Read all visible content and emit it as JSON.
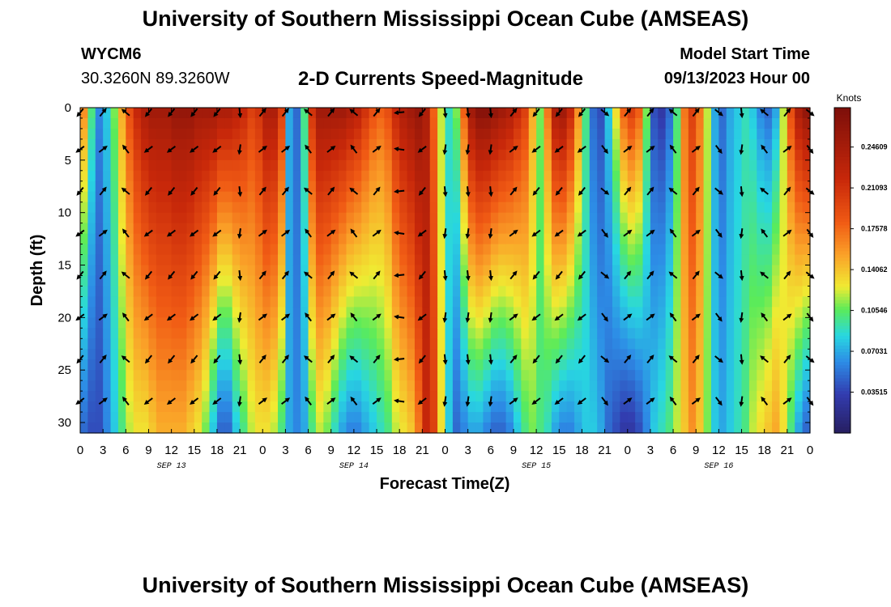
{
  "header": {
    "title": "University of Southern Mississippi Ocean Cube (AMSEAS)",
    "station": "WYCM6",
    "coords": "30.3260N  89.3260W",
    "subtitle": "2-D Currents Speed-Magnitude",
    "model_start_label": "Model Start Time",
    "model_start_value": "09/13/2023 Hour 00"
  },
  "footer": {
    "title": "University of Southern Mississippi Ocean Cube (AMSEAS)"
  },
  "chart_data": {
    "type": "heatmap",
    "xlabel": "Forecast Time(Z)",
    "ylabel": "Depth (ft)",
    "x_range_hours": [
      0,
      96
    ],
    "y_range_ft": [
      0,
      31
    ],
    "x_tick_labels": [
      "0",
      "3",
      "6",
      "9",
      "12",
      "15",
      "18",
      "21",
      "0",
      "3",
      "6",
      "9",
      "12",
      "15",
      "18",
      "21",
      "0",
      "3",
      "6",
      "9",
      "12",
      "15",
      "18",
      "21",
      "0",
      "3",
      "6",
      "9",
      "12",
      "15",
      "18",
      "21",
      "0"
    ],
    "y_ticks": [
      0,
      5,
      10,
      15,
      20,
      25,
      30
    ],
    "y_tick_labels": [
      "0",
      "5",
      "10",
      "15",
      "20",
      "25",
      "30"
    ],
    "day_labels": [
      "SEP 13",
      "SEP 14",
      "SEP 15",
      "SEP 16"
    ],
    "colorbar": {
      "title": "Knots",
      "range": [
        0,
        0.28
      ],
      "tick_values": [
        0.03515,
        0.07031,
        0.10546,
        0.14062,
        0.17578,
        0.21093,
        0.24609
      ],
      "tick_labels": [
        "0.03515",
        "0.07031",
        "0.10546",
        "0.14062",
        "0.17578",
        "0.21093",
        "0.24609"
      ]
    },
    "speed_profile": {
      "time_hours": [
        0,
        1,
        2,
        3,
        4,
        5,
        6,
        7,
        8,
        9,
        10,
        11,
        12,
        13,
        14,
        15,
        16,
        17,
        18,
        19,
        20,
        21,
        22,
        23,
        24,
        25,
        26,
        27,
        28,
        29,
        30,
        31,
        32,
        33,
        34,
        35,
        36,
        37,
        38,
        39,
        40,
        41,
        42,
        43,
        44,
        45,
        46,
        47,
        48,
        49,
        50,
        51,
        52,
        53,
        54,
        55,
        56,
        57,
        58,
        59,
        60,
        61,
        62,
        63,
        64,
        65,
        66,
        67,
        68,
        69,
        70,
        71,
        72,
        73,
        74,
        75,
        76,
        77,
        78,
        79,
        80,
        81,
        82,
        83,
        84,
        85,
        86,
        87,
        88,
        89,
        90,
        91,
        92,
        93,
        94,
        95,
        96
      ],
      "surface_knots": [
        0.16,
        0.1,
        0.06,
        0.08,
        0.11,
        0.15,
        0.19,
        0.22,
        0.24,
        0.25,
        0.25,
        0.25,
        0.26,
        0.26,
        0.26,
        0.25,
        0.25,
        0.25,
        0.24,
        0.24,
        0.23,
        0.22,
        0.2,
        0.21,
        0.24,
        0.24,
        0.2,
        0.07,
        0.05,
        0.1,
        0.21,
        0.25,
        0.25,
        0.25,
        0.25,
        0.24,
        0.23,
        0.21,
        0.19,
        0.18,
        0.19,
        0.22,
        0.24,
        0.25,
        0.26,
        0.24,
        0.18,
        0.12,
        0.09,
        0.11,
        0.18,
        0.25,
        0.27,
        0.27,
        0.26,
        0.25,
        0.24,
        0.22,
        0.2,
        0.15,
        0.11,
        0.17,
        0.24,
        0.25,
        0.22,
        0.16,
        0.1,
        0.05,
        0.04,
        0.08,
        0.13,
        0.18,
        0.2,
        0.18,
        0.11,
        0.04,
        0.03,
        0.05,
        0.1,
        0.17,
        0.2,
        0.17,
        0.12,
        0.07,
        0.05,
        0.07,
        0.08,
        0.09,
        0.08,
        0.06,
        0.05,
        0.07,
        0.12,
        0.19,
        0.24,
        0.26,
        0.26
      ],
      "deep_knots": [
        0.05,
        0.04,
        0.04,
        0.06,
        0.08,
        0.1,
        0.12,
        0.13,
        0.13,
        0.14,
        0.15,
        0.15,
        0.15,
        0.15,
        0.14,
        0.13,
        0.11,
        0.08,
        0.05,
        0.05,
        0.08,
        0.1,
        0.12,
        0.13,
        0.13,
        0.12,
        0.1,
        0.07,
        0.06,
        0.07,
        0.1,
        0.12,
        0.11,
        0.09,
        0.07,
        0.06,
        0.06,
        0.07,
        0.08,
        0.09,
        0.1,
        0.12,
        0.13,
        0.14,
        0.17,
        0.22,
        0.2,
        0.13,
        0.08,
        0.05,
        0.06,
        0.07,
        0.07,
        0.06,
        0.05,
        0.05,
        0.06,
        0.08,
        0.1,
        0.11,
        0.1,
        0.09,
        0.07,
        0.06,
        0.06,
        0.07,
        0.08,
        0.08,
        0.07,
        0.05,
        0.04,
        0.03,
        0.03,
        0.04,
        0.06,
        0.08,
        0.09,
        0.1,
        0.12,
        0.14,
        0.16,
        0.14,
        0.11,
        0.08,
        0.07,
        0.08,
        0.09,
        0.1,
        0.12,
        0.13,
        0.14,
        0.15,
        0.13,
        0.1,
        0.07,
        0.05,
        0.04
      ]
    },
    "vector_times_hours": [
      0,
      3,
      6,
      9,
      12,
      15,
      18,
      21,
      24,
      27,
      30,
      33,
      36,
      39,
      42,
      45,
      48,
      51,
      54,
      57,
      60,
      63,
      66,
      69,
      72,
      75,
      78,
      81,
      84,
      87,
      90,
      93,
      96
    ],
    "vector_depths_ft": [
      0,
      3.5,
      7.5,
      11.5,
      15.5,
      19.5,
      23.5,
      27.5
    ],
    "vector_direction_deg": [
      225,
      45,
      315,
      225,
      225,
      225,
      225,
      180,
      45,
      45,
      315,
      45,
      315,
      45,
      270,
      225,
      180,
      180,
      180,
      45,
      225,
      225,
      225,
      135,
      45,
      45,
      315,
      45,
      135,
      180,
      315,
      45,
      135
    ]
  }
}
